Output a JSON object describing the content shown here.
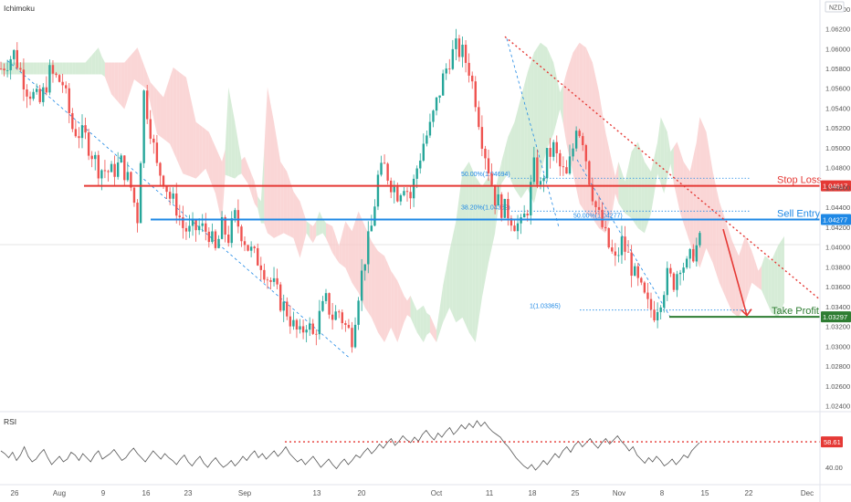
{
  "indicator_label": "Ichimoku",
  "currency_label": "NZD",
  "rsi_label": "RSI",
  "annotations": {
    "stop_loss": "Stop Loss",
    "sell_entry": "Sell Entry",
    "take_profit": "Take Profit",
    "fib_500": "50.00%(1.04694)",
    "fib_382": "38.20%(1.04362)",
    "fib_500b": "50.00%(1.04277)",
    "fib_1": "1(1.03365)"
  },
  "colors": {
    "bull": "#26a69a",
    "bear": "#ef5350",
    "stop_loss": "#e53935",
    "sell_entry": "#1e88e5",
    "take_profit": "#2e7d32",
    "kumo_bear": "#f8c8c8",
    "kumo_bull": "#c8e6c9",
    "rsi": "#555555",
    "trendline": "#e53935",
    "fib": "#1e88e5"
  },
  "chart_data": {
    "type": "candlestick",
    "instrument_currency": "NZD",
    "y_ticks": [
      "1.06400",
      "1.06200",
      "1.06000",
      "1.05800",
      "1.05600",
      "1.05400",
      "1.05200",
      "1.05000",
      "1.04800",
      "1.04600",
      "1.04400",
      "1.04200",
      "1.04000",
      "1.03800",
      "1.03600",
      "1.03400",
      "1.03200",
      "1.03000",
      "1.02800",
      "1.02600",
      "1.02400"
    ],
    "ylim": [
      1.0235,
      1.0649
    ],
    "x_ticks": [
      "26",
      "Aug",
      "9",
      "16",
      "23",
      "Sep",
      "13",
      "20",
      "Oct",
      "11",
      "18",
      "25",
      "Nov",
      "8",
      "15",
      "22",
      "Dec"
    ],
    "levels": [
      {
        "name": "Stop Loss",
        "value": "1.04617"
      },
      {
        "name": "Sell Entry",
        "value": "1.04277"
      },
      {
        "name": "Take Profit",
        "value": "1.03297"
      }
    ],
    "fib_levels": [
      {
        "label": "50.00%(1.04694)",
        "value": 1.04694
      },
      {
        "label": "38.20%(1.04362)",
        "value": 1.04362
      },
      {
        "label": "50.00%(1.04277)",
        "value": 1.04277
      },
      {
        "label": "1(1.03365)",
        "value": 1.03365
      }
    ],
    "price_path": [
      [
        0,
        1.058
      ],
      [
        4,
        1.0595
      ],
      [
        8,
        1.056
      ],
      [
        12,
        1.0545
      ],
      [
        15,
        1.0575
      ],
      [
        19,
        1.0565
      ],
      [
        22,
        1.052
      ],
      [
        26,
        1.051
      ],
      [
        30,
        1.048
      ],
      [
        34,
        1.0475
      ],
      [
        37,
        1.0485
      ],
      [
        40,
        1.046
      ],
      [
        42,
        1.043
      ],
      [
        44,
        1.0555
      ],
      [
        46,
        1.052
      ],
      [
        48,
        1.048
      ],
      [
        50,
        1.047
      ],
      [
        52,
        1.045
      ],
      [
        54,
        1.044
      ],
      [
        56,
        1.042
      ],
      [
        58,
        1.0415
      ],
      [
        61,
        1.042
      ],
      [
        64,
        1.0415
      ],
      [
        66,
        1.0395
      ],
      [
        68,
        1.042
      ],
      [
        70,
        1.041
      ],
      [
        72,
        1.043
      ],
      [
        74,
        1.0415
      ],
      [
        76,
        1.04
      ],
      [
        78,
        1.039
      ],
      [
        80,
        1.0385
      ],
      [
        82,
        1.037
      ],
      [
        84,
        1.036
      ],
      [
        86,
        1.0345
      ],
      [
        88,
        1.0335
      ],
      [
        90,
        1.032
      ],
      [
        92,
        1.031
      ],
      [
        94,
        1.0325
      ],
      [
        96,
        1.031
      ],
      [
        98,
        1.033
      ],
      [
        100,
        1.0345
      ],
      [
        102,
        1.033
      ],
      [
        104,
        1.0335
      ],
      [
        106,
        1.032
      ],
      [
        108,
        1.031
      ],
      [
        110,
        1.0355
      ],
      [
        112,
        1.039
      ],
      [
        114,
        1.042
      ],
      [
        116,
        1.047
      ],
      [
        118,
        1.048
      ],
      [
        120,
        1.0465
      ],
      [
        122,
        1.0455
      ],
      [
        124,
        1.0465
      ],
      [
        126,
        1.045
      ],
      [
        128,
        1.048
      ],
      [
        130,
        1.0505
      ],
      [
        132,
        1.052
      ],
      [
        134,
        1.0545
      ],
      [
        136,
        1.057
      ],
      [
        138,
        1.059
      ],
      [
        140,
        1.06
      ],
      [
        142,
        1.0595
      ],
      [
        144,
        1.058
      ],
      [
        146,
        1.055
      ],
      [
        148,
        1.051
      ],
      [
        150,
        1.048
      ],
      [
        152,
        1.045
      ],
      [
        154,
        1.044
      ],
      [
        156,
        1.0435
      ],
      [
        158,
        1.0425
      ],
      [
        160,
        1.042
      ],
      [
        162,
        1.044
      ],
      [
        164,
        1.048
      ],
      [
        166,
        1.046
      ],
      [
        168,
        1.049
      ],
      [
        170,
        1.05
      ],
      [
        172,
        1.048
      ],
      [
        174,
        1.047
      ],
      [
        176,
        1.05
      ],
      [
        177,
        1.0525
      ],
      [
        179,
        1.051
      ],
      [
        181,
        1.047
      ],
      [
        183,
        1.044
      ],
      [
        185,
        1.042
      ],
      [
        187,
        1.04
      ],
      [
        189,
        1.0385
      ],
      [
        191,
        1.0405
      ],
      [
        193,
        1.039
      ],
      [
        195,
        1.037
      ],
      [
        197,
        1.0355
      ],
      [
        199,
        1.034
      ],
      [
        201,
        1.0335
      ],
      [
        203,
        1.035
      ],
      [
        205,
        1.037
      ],
      [
        207,
        1.0365
      ],
      [
        209,
        1.0385
      ],
      [
        211,
        1.038
      ],
      [
        213,
        1.0395
      ],
      [
        215,
        1.0405
      ]
    ],
    "rsi": {
      "labels": [
        "58.61",
        "40.00"
      ],
      "overbought_line": 58.61,
      "ylim": [
        28,
        80
      ],
      "values": [
        52,
        50,
        47,
        51,
        45,
        49,
        55,
        48,
        44,
        46,
        50,
        53,
        47,
        42,
        45,
        48,
        44,
        46,
        51,
        49,
        45,
        50,
        47,
        44,
        49,
        52,
        46,
        48,
        50,
        53,
        49,
        45,
        47,
        51,
        54,
        50,
        47,
        44,
        48,
        52,
        49,
        46,
        50,
        47,
        45,
        42,
        46,
        49,
        44,
        41,
        45,
        48,
        43,
        40,
        44,
        47,
        43,
        40,
        42,
        45,
        41,
        44,
        48,
        45,
        49,
        52,
        47,
        50,
        46,
        49,
        52,
        48,
        51,
        55,
        50,
        47,
        44,
        46,
        42,
        45,
        48,
        44,
        40,
        43,
        46,
        42,
        39,
        43,
        46,
        42,
        45,
        49,
        47,
        51,
        54,
        50,
        53,
        57,
        54,
        58,
        61,
        56,
        59,
        63,
        60,
        58,
        62,
        59,
        64,
        67,
        63,
        60,
        65,
        62,
        66,
        69,
        64,
        67,
        71,
        68,
        72,
        69,
        74,
        70,
        73,
        69,
        66,
        64,
        62,
        58,
        55,
        51,
        47,
        44,
        41,
        39,
        42,
        38,
        41,
        45,
        42,
        46,
        50,
        47,
        52,
        55,
        51,
        56,
        59,
        55,
        58,
        61,
        57,
        54,
        58,
        61,
        57,
        60,
        63,
        59,
        56,
        52,
        55,
        49,
        46,
        43,
        47,
        44,
        48,
        45,
        41,
        43,
        46,
        42,
        45,
        49,
        47,
        52,
        55,
        58
      ]
    }
  }
}
